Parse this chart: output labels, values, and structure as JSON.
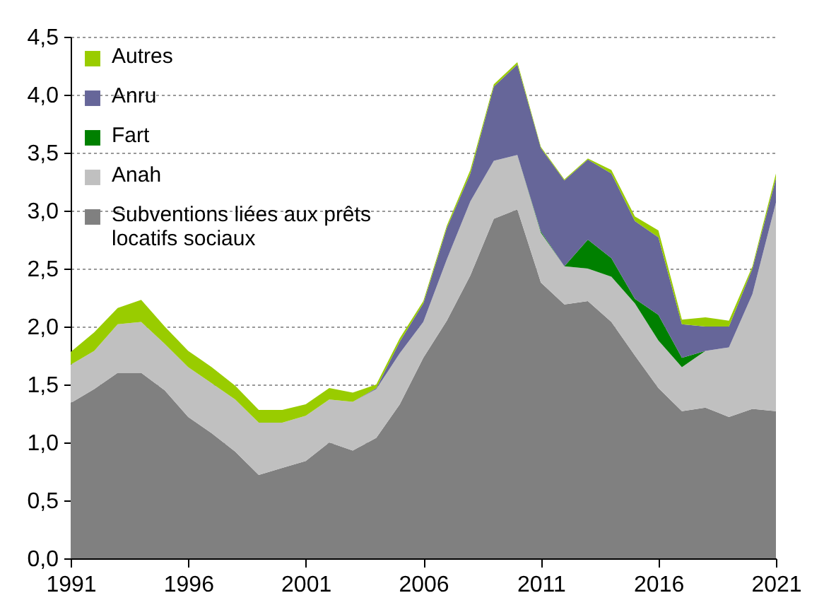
{
  "chart_data": {
    "type": "area",
    "stacked": true,
    "x": [
      1991,
      1992,
      1993,
      1994,
      1995,
      1996,
      1997,
      1998,
      1999,
      2000,
      2001,
      2002,
      2003,
      2004,
      2005,
      2006,
      2007,
      2008,
      2009,
      2010,
      2011,
      2012,
      2013,
      2014,
      2015,
      2016,
      2017,
      2018,
      2019,
      2020,
      2021
    ],
    "series": [
      {
        "name": "Subventions liées aux prêts locatifs sociaux",
        "color": "#808080",
        "values": [
          1.34,
          1.46,
          1.6,
          1.6,
          1.45,
          1.22,
          1.08,
          0.92,
          0.72,
          0.78,
          0.84,
          1.0,
          0.93,
          1.04,
          1.33,
          1.73,
          2.05,
          2.44,
          2.93,
          3.01,
          2.38,
          2.19,
          2.22,
          2.04,
          1.75,
          1.47,
          1.27,
          1.3,
          1.22,
          1.29,
          1.27
        ]
      },
      {
        "name": "Anah",
        "color": "#c0c0c0",
        "values": [
          0.33,
          0.33,
          0.42,
          0.44,
          0.4,
          0.43,
          0.43,
          0.45,
          0.45,
          0.39,
          0.39,
          0.37,
          0.42,
          0.42,
          0.44,
          0.31,
          0.53,
          0.64,
          0.5,
          0.47,
          0.43,
          0.33,
          0.28,
          0.39,
          0.45,
          0.41,
          0.38,
          0.49,
          0.6,
          0.99,
          1.8
        ]
      },
      {
        "name": "Fart",
        "color": "#008000",
        "values": [
          0,
          0,
          0,
          0,
          0,
          0,
          0,
          0,
          0,
          0,
          0,
          0,
          0,
          0,
          0,
          0,
          0,
          0,
          0,
          0,
          0.01,
          0,
          0.25,
          0.16,
          0.04,
          0.22,
          0.08,
          0,
          0,
          0,
          0
        ]
      },
      {
        "name": "Anru",
        "color": "#666699",
        "values": [
          0,
          0,
          0,
          0,
          0,
          0,
          0,
          0,
          0,
          0,
          0,
          0,
          0,
          0.01,
          0.1,
          0.16,
          0.27,
          0.24,
          0.64,
          0.78,
          0.72,
          0.74,
          0.69,
          0.73,
          0.67,
          0.67,
          0.29,
          0.21,
          0.18,
          0.22,
          0.21
        ]
      },
      {
        "name": "Autres",
        "color": "#99cc00",
        "values": [
          0.11,
          0.16,
          0.14,
          0.19,
          0.15,
          0.14,
          0.14,
          0.12,
          0.11,
          0.11,
          0.1,
          0.1,
          0.08,
          0.03,
          0.03,
          0.02,
          0.02,
          0.03,
          0.02,
          0.02,
          0.01,
          0.01,
          0.01,
          0.03,
          0.04,
          0.06,
          0.04,
          0.08,
          0.05,
          0.02,
          0.04
        ]
      }
    ],
    "xlim": [
      1991,
      2021
    ],
    "xticks": [
      1991,
      1996,
      2001,
      2006,
      2011,
      2016,
      2021
    ],
    "ylim": [
      0,
      4.5
    ],
    "yticks": [
      {
        "value": 0,
        "label": "0,0"
      },
      {
        "value": 0.5,
        "label": "0,5"
      },
      {
        "value": 1,
        "label": "1,0"
      },
      {
        "value": 1.5,
        "label": "1,5"
      },
      {
        "value": 2,
        "label": "2,0"
      },
      {
        "value": 2.5,
        "label": "2,5"
      },
      {
        "value": 3,
        "label": "3,0"
      },
      {
        "value": 3.5,
        "label": "3,5"
      },
      {
        "value": 4,
        "label": "4,0"
      },
      {
        "value": 4.5,
        "label": "4,5"
      }
    ],
    "grid": "y",
    "legend": "top left"
  }
}
